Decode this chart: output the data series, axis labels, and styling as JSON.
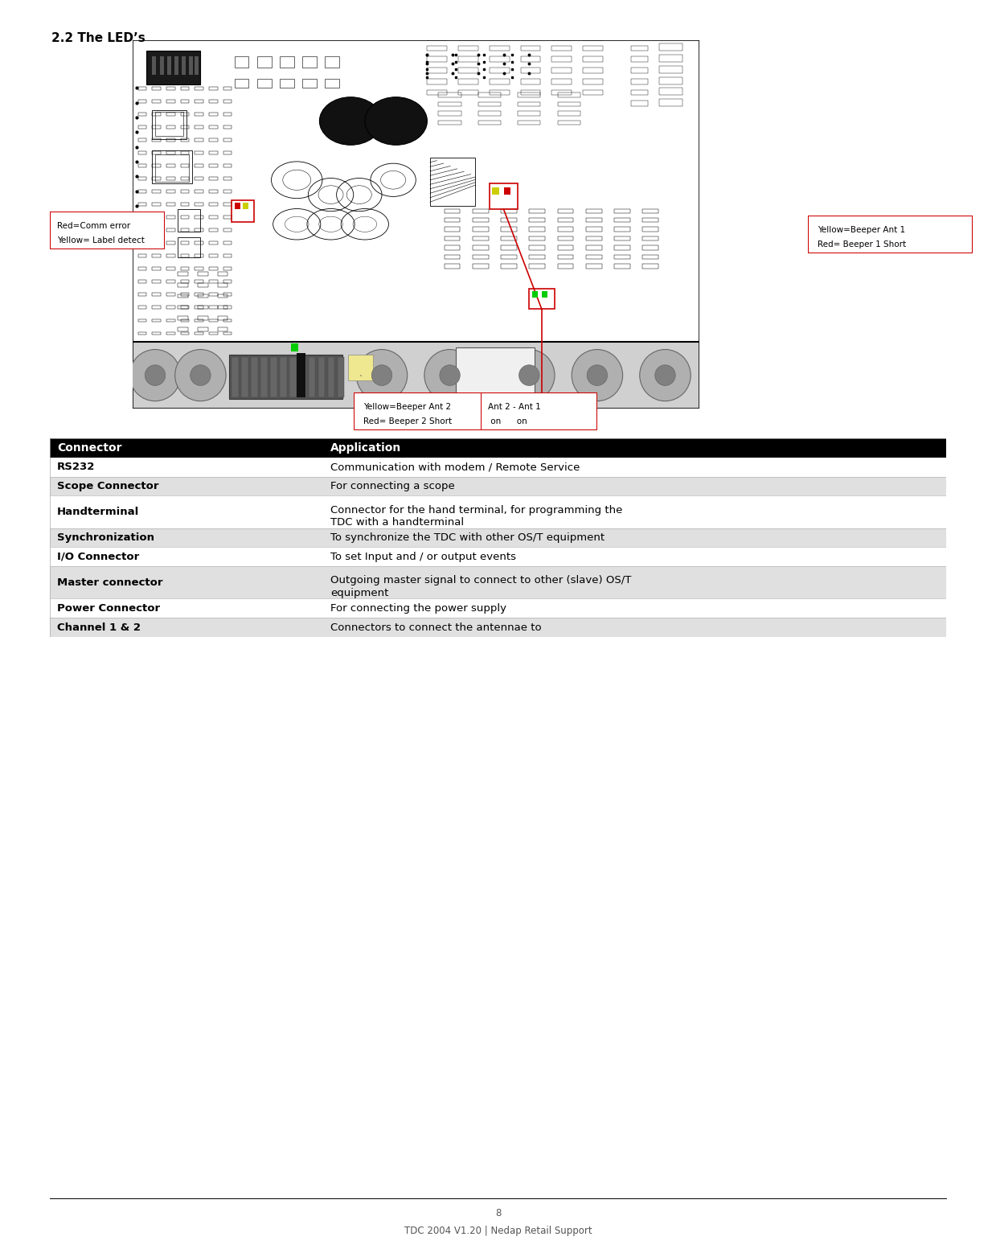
{
  "title": "2.2 The LED’s",
  "title_fontsize": 11,
  "page_number": "8",
  "footer_text": "TDC 2004 V1.20 | Nedap Retail Support",
  "table_header": [
    "Connector",
    "Application"
  ],
  "table_rows": [
    [
      "RS232",
      "Communication with modem / Remote Service",
      false
    ],
    [
      "Scope Connector",
      "For connecting a scope",
      true
    ],
    [
      "Handterminal",
      "Connector for the hand terminal, for programming the\nTDC with a handterminal",
      false
    ],
    [
      "Synchronization",
      "To synchronize the TDC with other OS/T equipment",
      true
    ],
    [
      "I/O Connector",
      "To set Input and / or output events",
      false
    ],
    [
      "Master connector",
      "Outgoing master signal to connect to other (slave) OS/T\nequipment",
      true
    ],
    [
      "Power Connector",
      "For connecting the power supply",
      false
    ],
    [
      "Channel 1 & 2",
      "Connectors to connect the antennae to",
      true
    ]
  ],
  "table_header_bg": "#000000",
  "table_header_fg": "#ffffff",
  "table_row_bg_odd": "#ffffff",
  "table_row_bg_even": "#e0e0e0",
  "background_color": "#ffffff",
  "pcb_bg": "#ffffff",
  "pcb_border": "#000000",
  "pcb_line": "#000000",
  "annotation_border": "#cc0000",
  "label_red_comm_line1": "Red=Comm error",
  "label_red_comm_line2": "Yellow= Label detect",
  "label_yellow_ant1_line1": "Yellow=Beeper Ant 1",
  "label_yellow_ant1_line2": "Red= Beeper 1 Short",
  "label_yellow_ant2_line1": "Yellow=Beeper Ant 2",
  "label_yellow_ant2_line2": "Red= Beeper 2 Short",
  "label_ant_line1": "Ant 2 - Ant 1",
  "label_ant_line2": " on      on"
}
